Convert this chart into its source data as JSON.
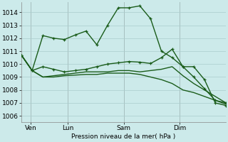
{
  "background_color": "#cceaea",
  "grid_color": "#aacccc",
  "line_color": "#1a5c1a",
  "marker_color": "#1a5c1a",
  "xlabel": "Pression niveau de la mer( hPa )",
  "ylim": [
    1005.5,
    1014.8
  ],
  "yticks": [
    1006,
    1007,
    1008,
    1009,
    1010,
    1011,
    1012,
    1013,
    1014
  ],
  "xtick_labels": [
    "Ven",
    "Lun",
    "Sam",
    "Dim"
  ],
  "xtick_positions": [
    1,
    5,
    11,
    17
  ],
  "vlines": [
    1,
    5,
    11,
    17
  ],
  "series": [
    {
      "y": [
        1010.7,
        1009.5,
        1012.2,
        1012.0,
        1011.9,
        1012.25,
        1012.55,
        1011.5,
        1013.0,
        1014.35,
        1014.35,
        1014.5,
        1013.5,
        1011.0,
        1010.5,
        1009.8,
        1009.8,
        1008.8,
        1007.0,
        1006.8
      ],
      "marker": true,
      "lw": 1.0
    },
    {
      "y": [
        1010.7,
        1009.5,
        1009.8,
        1009.6,
        1009.4,
        1009.5,
        1009.6,
        1009.8,
        1010.0,
        1010.1,
        1010.2,
        1010.15,
        1010.05,
        1010.5,
        1011.15,
        1009.8,
        1009.0,
        1008.1,
        1007.2,
        1007.0
      ],
      "marker": true,
      "lw": 1.0
    },
    {
      "y": [
        1010.7,
        1009.5,
        1009.0,
        1009.1,
        1009.2,
        1009.3,
        1009.4,
        1009.4,
        1009.4,
        1009.5,
        1009.5,
        1009.4,
        1009.5,
        1009.6,
        1009.8,
        1009.1,
        1008.5,
        1008.0,
        1007.5,
        1007.0
      ],
      "marker": false,
      "lw": 1.0
    },
    {
      "y": [
        1010.7,
        1009.5,
        1009.0,
        1009.0,
        1009.1,
        1009.15,
        1009.2,
        1009.2,
        1009.3,
        1009.3,
        1009.3,
        1009.2,
        1009.0,
        1008.8,
        1008.5,
        1008.0,
        1007.8,
        1007.5,
        1007.2,
        1006.9
      ],
      "marker": false,
      "lw": 1.0
    }
  ],
  "figsize": [
    3.2,
    2.0
  ],
  "dpi": 100
}
